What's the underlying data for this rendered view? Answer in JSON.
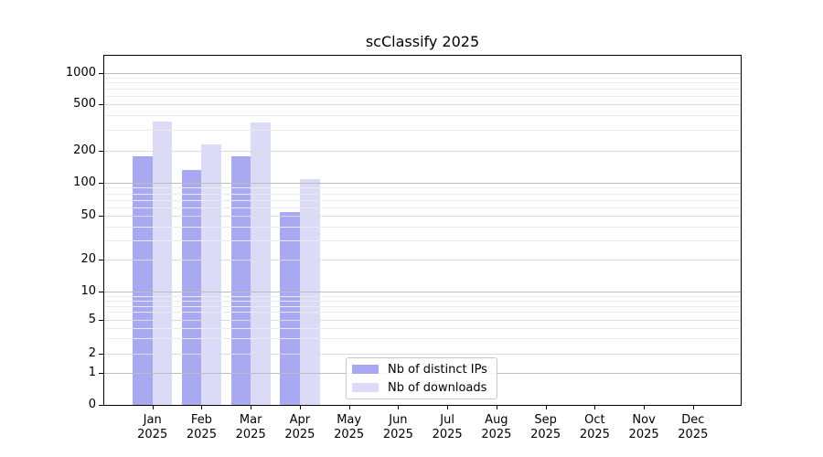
{
  "title": "scClassify 2025",
  "chart_data": {
    "type": "bar",
    "title": "scClassify 2025",
    "categories": [
      "Jan 2025",
      "Feb 2025",
      "Mar 2025",
      "Apr 2025",
      "May 2025",
      "Jun 2025",
      "Jul 2025",
      "Aug 2025",
      "Sep 2025",
      "Oct 2025",
      "Nov 2025",
      "Dec 2025"
    ],
    "series": [
      {
        "name": "Nb of distinct IPs",
        "color": "#a9a9f2",
        "values": [
          175,
          131,
          177,
          54,
          0,
          0,
          0,
          0,
          0,
          0,
          0,
          0
        ]
      },
      {
        "name": "Nb of downloads",
        "color": "#dbdbf8",
        "values": [
          352,
          224,
          345,
          108,
          0,
          0,
          0,
          0,
          0,
          0,
          0,
          0
        ]
      }
    ],
    "y_axis": {
      "ticks": [
        0,
        1,
        2,
        5,
        10,
        20,
        50,
        100,
        200,
        500,
        1000
      ],
      "scale": "log (1-2-5 labeled sequence with 0 baseline)",
      "ylim": [
        0,
        1400
      ]
    },
    "grid": {
      "horizontal": true,
      "minor": true,
      "vertical": false
    },
    "legend": {
      "location": "inside-bottom-center",
      "items": [
        "Nb of distinct IPs",
        "Nb of downloads"
      ]
    }
  },
  "colors": {
    "bar_ips": "#a9a9f2",
    "bar_downloads": "#dbdbf8",
    "grid_major": "#bdbdbd",
    "grid_mid": "#dcdcdc",
    "grid_minor": "#ebebeb",
    "spine": "#000000",
    "text": "#000000",
    "legend_border": "#c8c8c8"
  }
}
